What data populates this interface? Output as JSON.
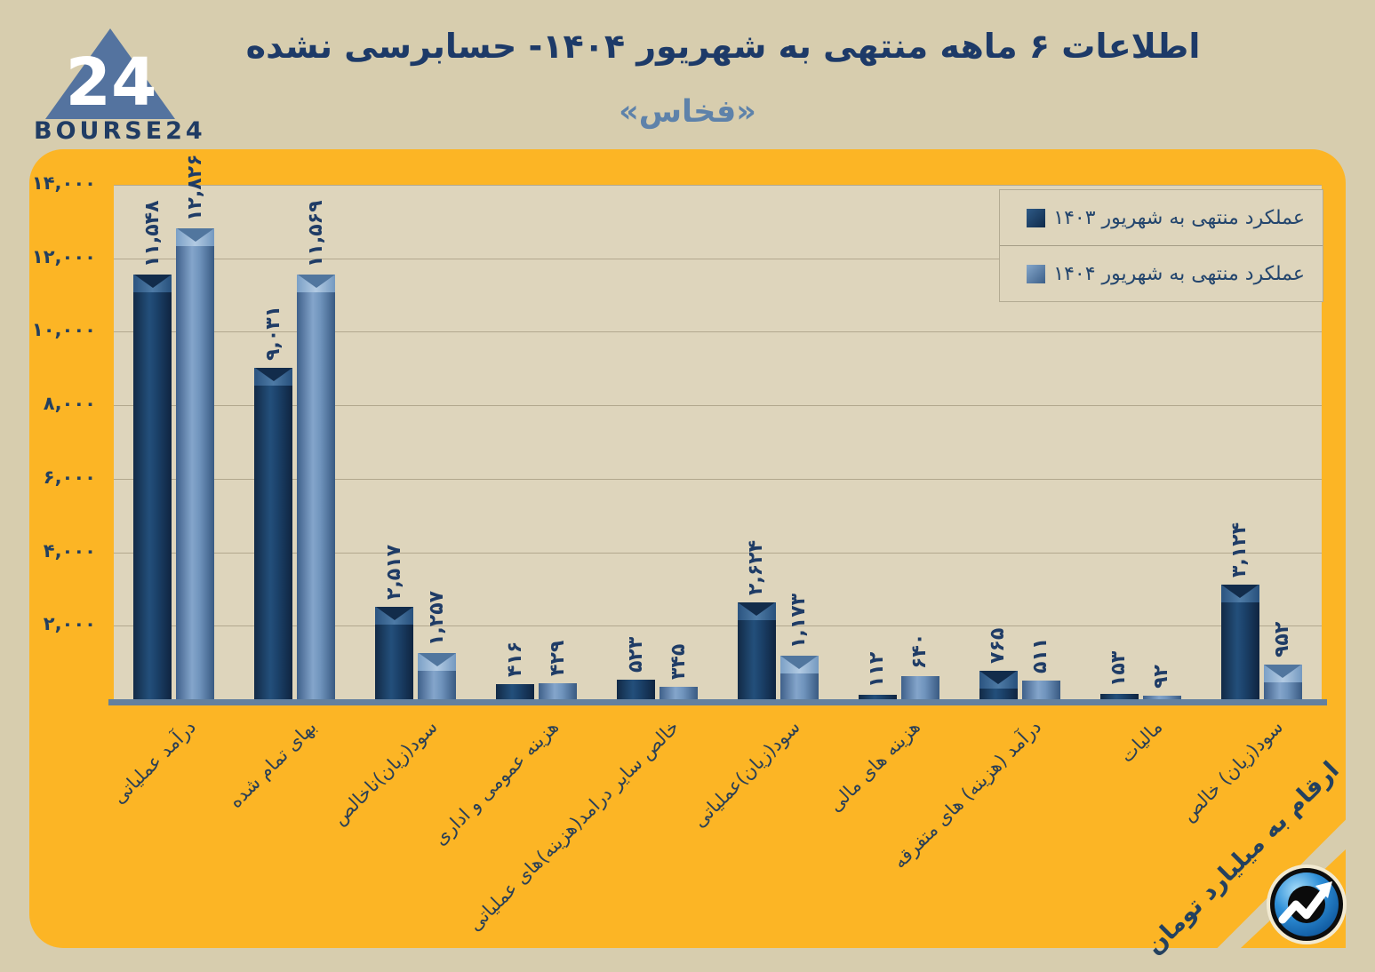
{
  "header": {
    "logo_brand": "BOURSE24",
    "logo_number": "24",
    "title": "اطلاعات ۶ ماهه منتهی به شهریور  ۱۴۰۴- حسابرسی نشده",
    "subtitle": "«فخاس»"
  },
  "footnote": {
    "text": "ارقام به میلیارد تومان"
  },
  "colors": {
    "page_background": "#d7cdae",
    "panel_orange": "#fcb525",
    "plot_background": "#ded5bc",
    "gridline": "#b2a88e",
    "baseline": "#63809e",
    "title_navy": "#1d3a68",
    "subtitle_blue": "#5e82aa",
    "series_1403": "#16395f",
    "series_1404": "#54789f"
  },
  "chart_data": {
    "type": "bar",
    "title": "اطلاعات ۶ ماهه منتهی به شهریور ۱۴۰۴- حسابرسی نشده",
    "subtitle": "«فخاس»",
    "unit_note": "ارقام به میلیارد تومان",
    "grid": "horizontal",
    "legend_position": "top-right",
    "ylim": [
      0,
      14000
    ],
    "yticks": [
      {
        "label": "۱۴,۰۰۰",
        "value": 14000
      },
      {
        "label": "۱۲,۰۰۰",
        "value": 12000
      },
      {
        "label": "۱۰,۰۰۰",
        "value": 10000
      },
      {
        "label": "۸,۰۰۰",
        "value": 8000
      },
      {
        "label": "۶,۰۰۰",
        "value": 6000
      },
      {
        "label": "۴,۰۰۰",
        "value": 4000
      },
      {
        "label": "۲,۰۰۰",
        "value": 2000
      }
    ],
    "categories": [
      "درآمد عملیاتی",
      "بهای تمام شده",
      "سود(زیان)ناخالص",
      "هزینه عمومی و اداری",
      "خالص سایر درامد(هزینه)های عملیاتی",
      "سود(زیان)عملیاتی",
      "هزینه های مالی",
      "درآمد (هزینه) های متفرقه",
      "مالیات",
      "سود(زیان) خالص"
    ],
    "series": [
      {
        "name": "عملکرد منتهی به شهریور ۱۴۰۳",
        "values": [
          11548,
          9031,
          2517,
          416,
          523,
          2624,
          112,
          765,
          153,
          3124
        ],
        "labels": [
          "۱۱,۵۴۸",
          "۹,۰۳۱",
          "۲,۵۱۷",
          "۴۱۶",
          "۵۲۳",
          "۲,۶۲۴",
          "۱۱۲",
          "۷۶۵",
          "۱۵۳",
          "۳,۱۲۴"
        ]
      },
      {
        "name": "عملکرد منتهی به شهریور ۱۴۰۴",
        "values": [
          12826,
          11569,
          1257,
          429,
          345,
          1173,
          640,
          511,
          92,
          952
        ],
        "labels": [
          "۱۲,۸۲۶",
          "۱۱,۵۶۹",
          "۱,۲۵۷",
          "۴۲۹",
          "۳۴۵",
          "۱,۱۷۳",
          "۶۴۰",
          "۵۱۱",
          "۹۲",
          "۹۵۲"
        ]
      }
    ]
  }
}
